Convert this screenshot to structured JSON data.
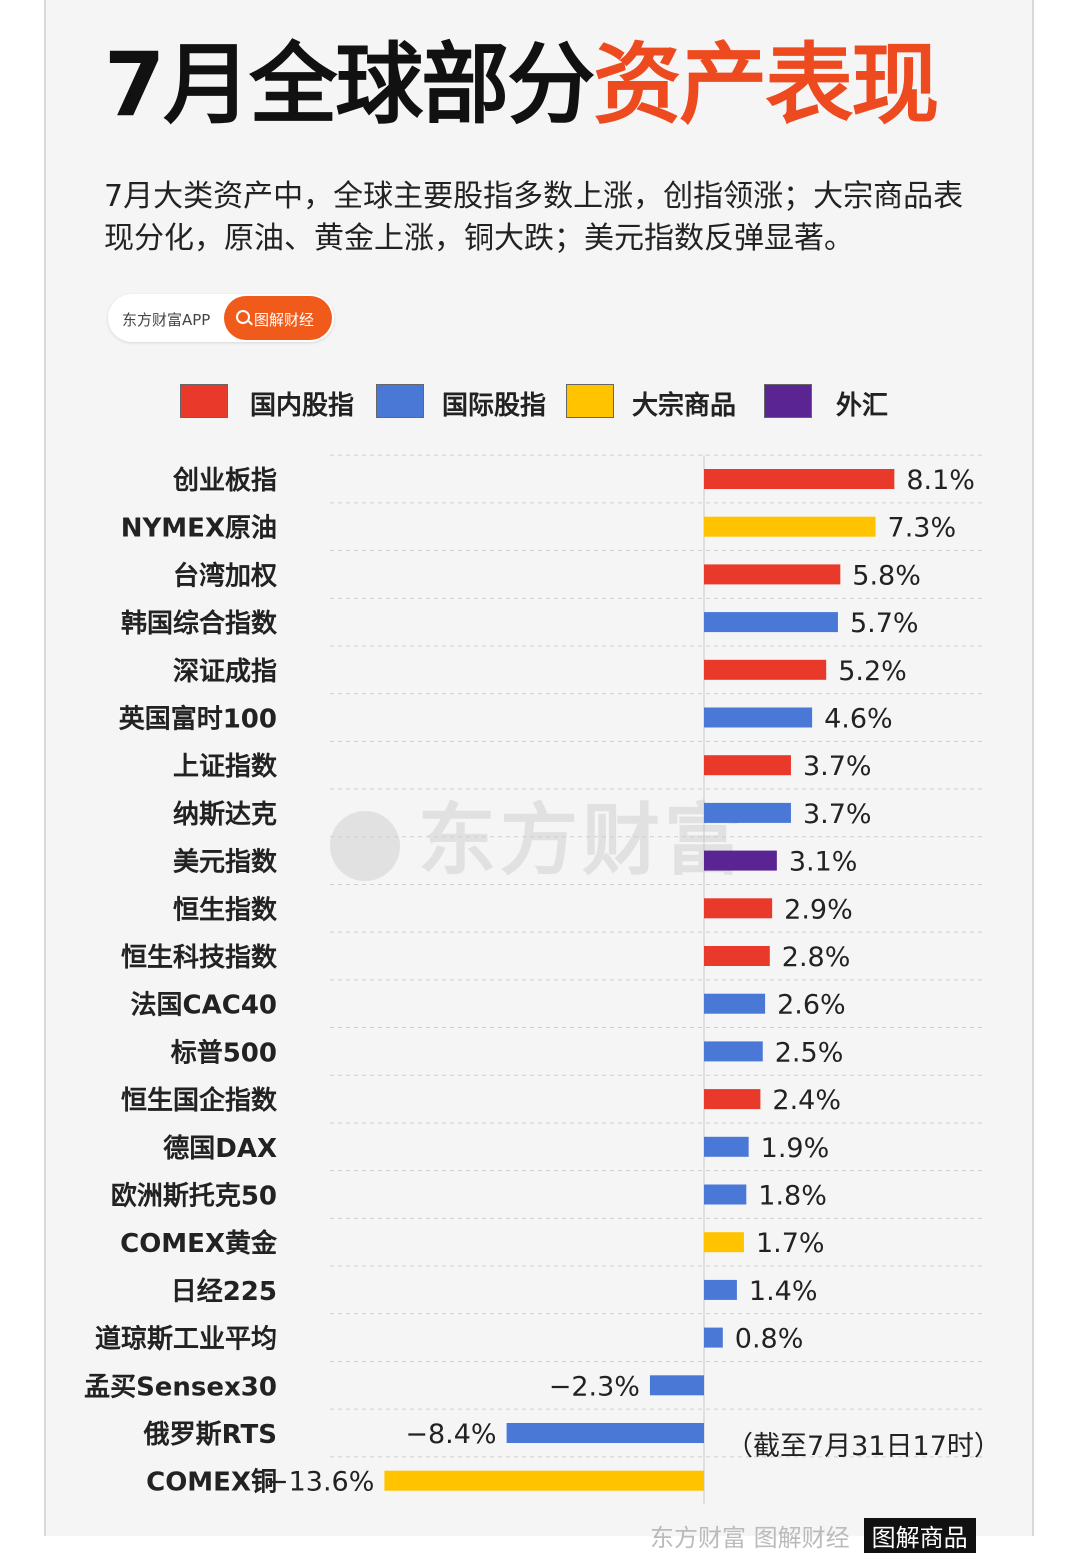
{
  "title": {
    "part1": "7月全球部分",
    "part2": "资产表现"
  },
  "subtitle": "7月大类资产中，全球主要股指多数上涨，创指领涨；大宗商品表现分化，原油、黄金上涨，铜大跌；美元指数反弹显著。",
  "brand": {
    "app": "东方财富APP",
    "pill": "图解财经",
    "pill_icon": "search-icon"
  },
  "watermark": "东方财富",
  "note": "（截至7月31日17时）",
  "footer": {
    "text": "东方财富 图解财经",
    "box": "图解商品"
  },
  "colors": {
    "domestic": "#e8392b",
    "international": "#4a78d6",
    "commodity": "#ffc300",
    "fx": "#5a2492",
    "title_accent": "#ee4a1f"
  },
  "chart_data": {
    "type": "bar",
    "orientation": "horizontal",
    "legend": [
      {
        "key": "domestic",
        "label": "国内股指"
      },
      {
        "key": "international",
        "label": "国际股指"
      },
      {
        "key": "commodity",
        "label": "大宗商品"
      },
      {
        "key": "fx",
        "label": "外汇"
      }
    ],
    "categories": [
      "创业板指",
      "NYMEX原油",
      "台湾加权",
      "韩国综合指数",
      "深证成指",
      "英国富时100",
      "上证指数",
      "纳斯达克",
      "美元指数",
      "恒生指数",
      "恒生科技指数",
      "法国CAC40",
      "标普500",
      "恒生国企指数",
      "德国DAX",
      "欧洲斯托克50",
      "COMEX黄金",
      "日经225",
      "道琼斯工业平均",
      "孟买Sensex30",
      "俄罗斯RTS",
      "COMEX铜"
    ],
    "values": [
      8.1,
      7.3,
      5.8,
      5.7,
      5.2,
      4.6,
      3.7,
      3.7,
      3.1,
      2.9,
      2.8,
      2.6,
      2.5,
      2.4,
      1.9,
      1.8,
      1.7,
      1.4,
      0.8,
      -2.3,
      -8.4,
      -13.6
    ],
    "labels": [
      "8.1%",
      "7.3%",
      "5.8%",
      "5.7%",
      "5.2%",
      "4.6%",
      "3.7%",
      "3.7%",
      "3.1%",
      "2.9%",
      "2.8%",
      "2.6%",
      "2.5%",
      "2.4%",
      "1.9%",
      "1.8%",
      "1.7%",
      "1.4%",
      "0.8%",
      "−2.3%",
      "−8.4%",
      "−13.6%"
    ],
    "groups": [
      "domestic",
      "commodity",
      "domestic",
      "international",
      "domestic",
      "international",
      "domestic",
      "international",
      "fx",
      "domestic",
      "domestic",
      "international",
      "international",
      "domestic",
      "international",
      "international",
      "commodity",
      "international",
      "international",
      "international",
      "international",
      "commodity"
    ],
    "unit": "%",
    "grid": "dashed horizontal"
  }
}
